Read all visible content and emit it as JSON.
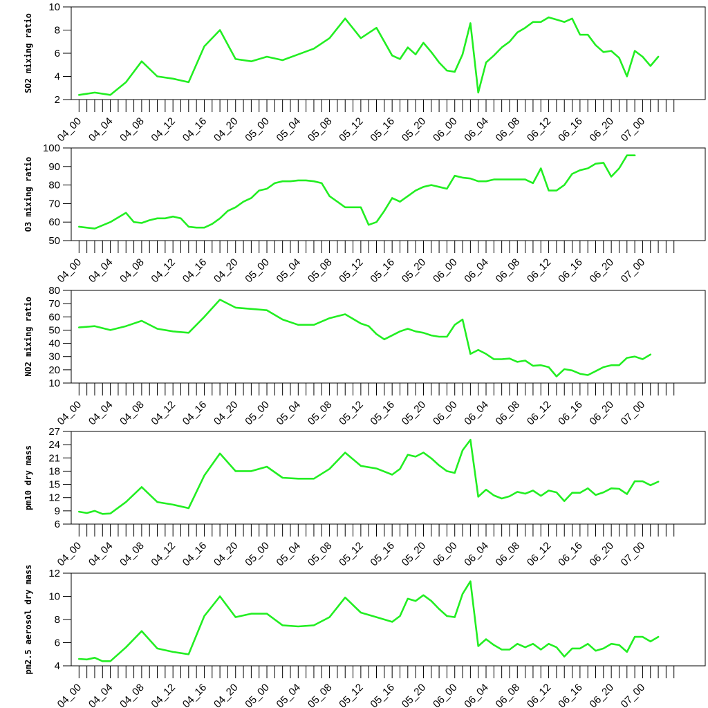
{
  "colors": {
    "line": "#22ee22",
    "axis": "#000000",
    "background": "#ffffff"
  },
  "x_tick_labels": [
    "04_00",
    "04_04",
    "04_08",
    "04_12",
    "04_16",
    "04_20",
    "05_00",
    "05_04",
    "05_08",
    "05_12",
    "05_16",
    "05_20",
    "06_00",
    "06_04",
    "06_08",
    "06_12",
    "06_16",
    "06_20",
    "07_00"
  ],
  "chart_data": [
    {
      "type": "line",
      "ylabel": "SO2 mixing ratio",
      "ylim": [
        2,
        10
      ],
      "yticks": [
        2,
        4,
        6,
        8,
        10
      ],
      "xlim": [
        -1,
        80
      ],
      "x_ticks_step": 1,
      "x_label_step": 4,
      "series": [
        {
          "x": [
            0,
            2,
            4,
            6,
            8,
            10,
            12,
            14,
            16,
            18,
            20,
            22,
            24,
            26,
            28,
            30,
            32,
            34,
            36,
            38,
            40,
            41,
            42,
            43,
            44,
            45,
            46,
            47,
            48,
            49,
            50,
            51,
            52,
            53,
            54,
            55,
            56,
            57,
            58,
            59,
            60,
            61,
            62,
            63,
            64,
            65,
            66,
            67,
            68,
            69,
            70,
            71,
            72,
            73,
            74,
            75,
            76,
            77,
            78,
            79
          ],
          "values": [
            2.4,
            2.6,
            2.4,
            3.5,
            5.3,
            4.0,
            3.8,
            3.5,
            6.6,
            8.0,
            5.5,
            5.3,
            5.7,
            5.4,
            5.9,
            6.4,
            7.3,
            9.0,
            7.3,
            8.2,
            5.8,
            5.5,
            6.5,
            5.9,
            6.9,
            6.1,
            5.2,
            4.5,
            4.4,
            5.9,
            8.6,
            2.6,
            5.2,
            5.8,
            6.5,
            7.0,
            7.8,
            8.2,
            8.7,
            8.7,
            9.1,
            8.9,
            8.7,
            9.0,
            7.6,
            7.6,
            6.7,
            6.1,
            6.2,
            5.6,
            4.0,
            6.2,
            5.7,
            4.9,
            5.7,
            null,
            null,
            null,
            null,
            null
          ]
        }
      ]
    },
    {
      "type": "line",
      "ylabel": "O3 mixing ratio",
      "ylim": [
        50,
        100
      ],
      "yticks": [
        50,
        60,
        70,
        80,
        90,
        100
      ],
      "xlim": [
        -1,
        80
      ],
      "x_ticks_step": 1,
      "x_label_step": 4,
      "series": [
        {
          "x": [
            0,
            2,
            4,
            6,
            7,
            8,
            9,
            10,
            11,
            12,
            13,
            14,
            15,
            16,
            17,
            18,
            19,
            20,
            21,
            22,
            23,
            24,
            25,
            26,
            27,
            28,
            29,
            30,
            31,
            32,
            33,
            34,
            35,
            36,
            37,
            38,
            39,
            40,
            41,
            42,
            43,
            44,
            45,
            46,
            47,
            48,
            49,
            50,
            51,
            52,
            53,
            54,
            55,
            56,
            57,
            58,
            59,
            60,
            61,
            62,
            63,
            64,
            65,
            66,
            67,
            68,
            69,
            70,
            71,
            72,
            73,
            74
          ],
          "values": [
            57.5,
            56.5,
            60,
            65,
            60,
            59.5,
            61,
            62,
            62,
            63,
            62,
            57.5,
            57,
            57,
            59,
            62,
            66,
            68,
            71,
            73,
            77,
            78,
            81,
            82,
            82,
            82.5,
            82.5,
            82,
            81,
            74,
            71,
            68,
            68,
            68,
            58.5,
            60,
            66,
            73,
            71,
            74,
            77,
            79,
            80,
            79,
            78,
            85,
            84,
            83.5,
            82,
            82,
            83,
            83,
            83,
            83,
            83,
            81,
            89,
            77,
            77,
            80,
            86,
            88,
            89,
            91.5,
            92,
            84.5,
            89,
            96,
            96,
            null,
            null,
            null
          ]
        }
      ]
    },
    {
      "type": "line",
      "ylabel": "NO2 mixing ratio",
      "ylim": [
        10,
        80
      ],
      "yticks": [
        10,
        20,
        30,
        40,
        50,
        60,
        70,
        80
      ],
      "xlim": [
        -1,
        80
      ],
      "x_ticks_step": 1,
      "x_label_step": 4,
      "series": [
        {
          "x": [
            0,
            2,
            4,
            6,
            8,
            10,
            12,
            14,
            16,
            18,
            20,
            22,
            24,
            26,
            28,
            30,
            32,
            34,
            36,
            37,
            38,
            39,
            40,
            41,
            42,
            43,
            44,
            45,
            46,
            47,
            48,
            49,
            50,
            51,
            52,
            53,
            54,
            55,
            56,
            57,
            58,
            59,
            60,
            61,
            62,
            63,
            64,
            65,
            66,
            67,
            68,
            69,
            70,
            71,
            72,
            73,
            74,
            75,
            76,
            77
          ],
          "values": [
            52,
            53,
            50,
            53,
            57,
            51,
            49,
            48,
            60,
            73,
            67,
            66,
            65,
            58,
            54,
            54,
            59,
            62,
            55,
            53,
            47,
            43,
            46,
            49,
            51,
            49,
            48,
            46,
            45,
            45,
            54,
            58,
            32,
            35,
            32,
            28,
            28,
            28.5,
            26,
            27,
            23,
            23.5,
            22,
            15,
            20.5,
            19.5,
            17,
            16,
            19,
            22,
            23.5,
            23.5,
            29,
            30,
            28,
            31.5,
            null,
            null,
            null,
            null
          ]
        }
      ]
    },
    {
      "type": "line",
      "ylabel": "pm10 dry mass",
      "ylim": [
        6,
        27
      ],
      "yticks": [
        6,
        9,
        12,
        15,
        18,
        21,
        24,
        27
      ],
      "xlim": [
        -1,
        80
      ],
      "x_ticks_step": 1,
      "x_label_step": 4,
      "series": [
        {
          "x": [
            0,
            1,
            2,
            3,
            4,
            6,
            8,
            10,
            12,
            14,
            16,
            18,
            20,
            22,
            24,
            26,
            28,
            30,
            32,
            34,
            36,
            38,
            40,
            41,
            42,
            43,
            44,
            45,
            46,
            47,
            48,
            49,
            50,
            51,
            52,
            53,
            54,
            55,
            56,
            57,
            58,
            59,
            60,
            61,
            62,
            63,
            64,
            65,
            66,
            67,
            68,
            69,
            70,
            71,
            72,
            73,
            74,
            75,
            76,
            77
          ],
          "values": [
            8.8,
            8.5,
            9,
            8.3,
            8.4,
            11,
            14.4,
            11,
            10.4,
            9.6,
            17,
            22,
            18,
            18,
            19,
            16.5,
            16.3,
            16.3,
            18.5,
            22.2,
            19.2,
            18.6,
            17.2,
            18.5,
            21.7,
            21.3,
            22.2,
            20.9,
            19.3,
            18,
            17.6,
            22.7,
            25.1,
            12.2,
            13.8,
            12.5,
            11.8,
            12.3,
            13.3,
            12.9,
            13.6,
            12.4,
            13.6,
            13.2,
            11.2,
            13.1,
            13.1,
            14.1,
            12.6,
            13.2,
            14.1,
            14,
            12.8,
            15.7,
            15.7,
            14.8,
            15.6,
            null,
            null,
            null
          ]
        }
      ]
    },
    {
      "type": "line",
      "ylabel": "pm2.5 aerosol dry mass",
      "ylim": [
        4,
        12
      ],
      "yticks": [
        4,
        6,
        8,
        10,
        12
      ],
      "xlim": [
        -1,
        80
      ],
      "x_ticks_step": 1,
      "x_label_step": 4,
      "series": [
        {
          "x": [
            0,
            1,
            2,
            3,
            4,
            6,
            8,
            10,
            12,
            14,
            16,
            18,
            20,
            22,
            24,
            26,
            28,
            30,
            32,
            34,
            36,
            38,
            40,
            41,
            42,
            43,
            44,
            45,
            46,
            47,
            48,
            49,
            50,
            51,
            52,
            53,
            54,
            55,
            56,
            57,
            58,
            59,
            60,
            61,
            62,
            63,
            64,
            65,
            66,
            67,
            68,
            69,
            70,
            71,
            72,
            73,
            74,
            75,
            76,
            77
          ],
          "values": [
            4.6,
            4.55,
            4.7,
            4.4,
            4.4,
            5.6,
            7.0,
            5.5,
            5.2,
            5.0,
            8.3,
            10,
            8.2,
            8.5,
            8.5,
            7.5,
            7.4,
            7.5,
            8.2,
            9.9,
            8.6,
            8.2,
            7.8,
            8.3,
            9.8,
            9.6,
            10.1,
            9.6,
            8.9,
            8.3,
            8.2,
            10.2,
            11.3,
            5.7,
            6.3,
            5.8,
            5.4,
            5.4,
            5.9,
            5.6,
            5.9,
            5.4,
            5.9,
            5.6,
            4.8,
            5.5,
            5.5,
            5.9,
            5.3,
            5.5,
            5.9,
            5.8,
            5.2,
            6.5,
            6.5,
            6.1,
            6.5,
            null,
            null,
            null
          ]
        }
      ]
    }
  ]
}
